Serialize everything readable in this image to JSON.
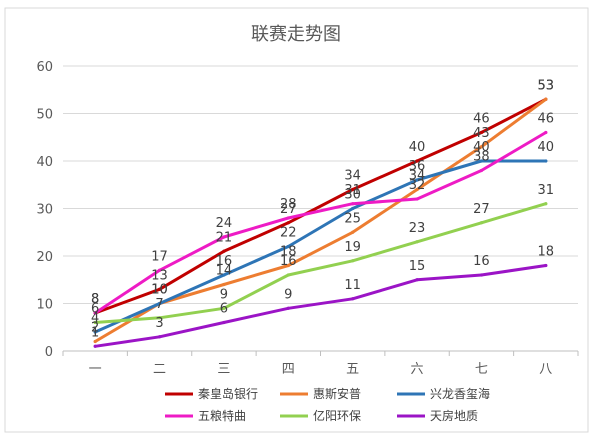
{
  "chart_data": {
    "type": "line",
    "title": "联赛走势图",
    "xlabel": "",
    "ylabel": "",
    "categories": [
      "一",
      "二",
      "三",
      "四",
      "五",
      "六",
      "七",
      "八"
    ],
    "ylim": [
      0,
      60
    ],
    "yticks": [
      0,
      10,
      20,
      30,
      40,
      50,
      60
    ],
    "grid": true,
    "legend_position": "bottom",
    "series": [
      {
        "name": "秦皇岛银行",
        "color": "#C00000",
        "values": [
          8,
          13,
          21,
          27,
          34,
          40,
          46,
          53
        ]
      },
      {
        "name": "惠斯安普",
        "color": "#ED7D31",
        "values": [
          2,
          10,
          14,
          18,
          25,
          34,
          43,
          53
        ]
      },
      {
        "name": "兴龙香玺海",
        "color": "#2E75B6",
        "values": [
          4,
          10,
          16,
          22,
          30,
          36,
          40,
          40
        ]
      },
      {
        "name": "五粮特曲",
        "color": "#EE1BC5",
        "values": [
          8,
          17,
          24,
          28,
          31,
          32,
          38,
          46
        ]
      },
      {
        "name": "亿阳环保",
        "color": "#92D050",
        "values": [
          6,
          7,
          9,
          16,
          19,
          23,
          27,
          31
        ]
      },
      {
        "name": "天房地质",
        "color": "#9B14C6",
        "values": [
          1,
          3,
          6,
          9,
          11,
          15,
          16,
          18
        ]
      }
    ]
  }
}
